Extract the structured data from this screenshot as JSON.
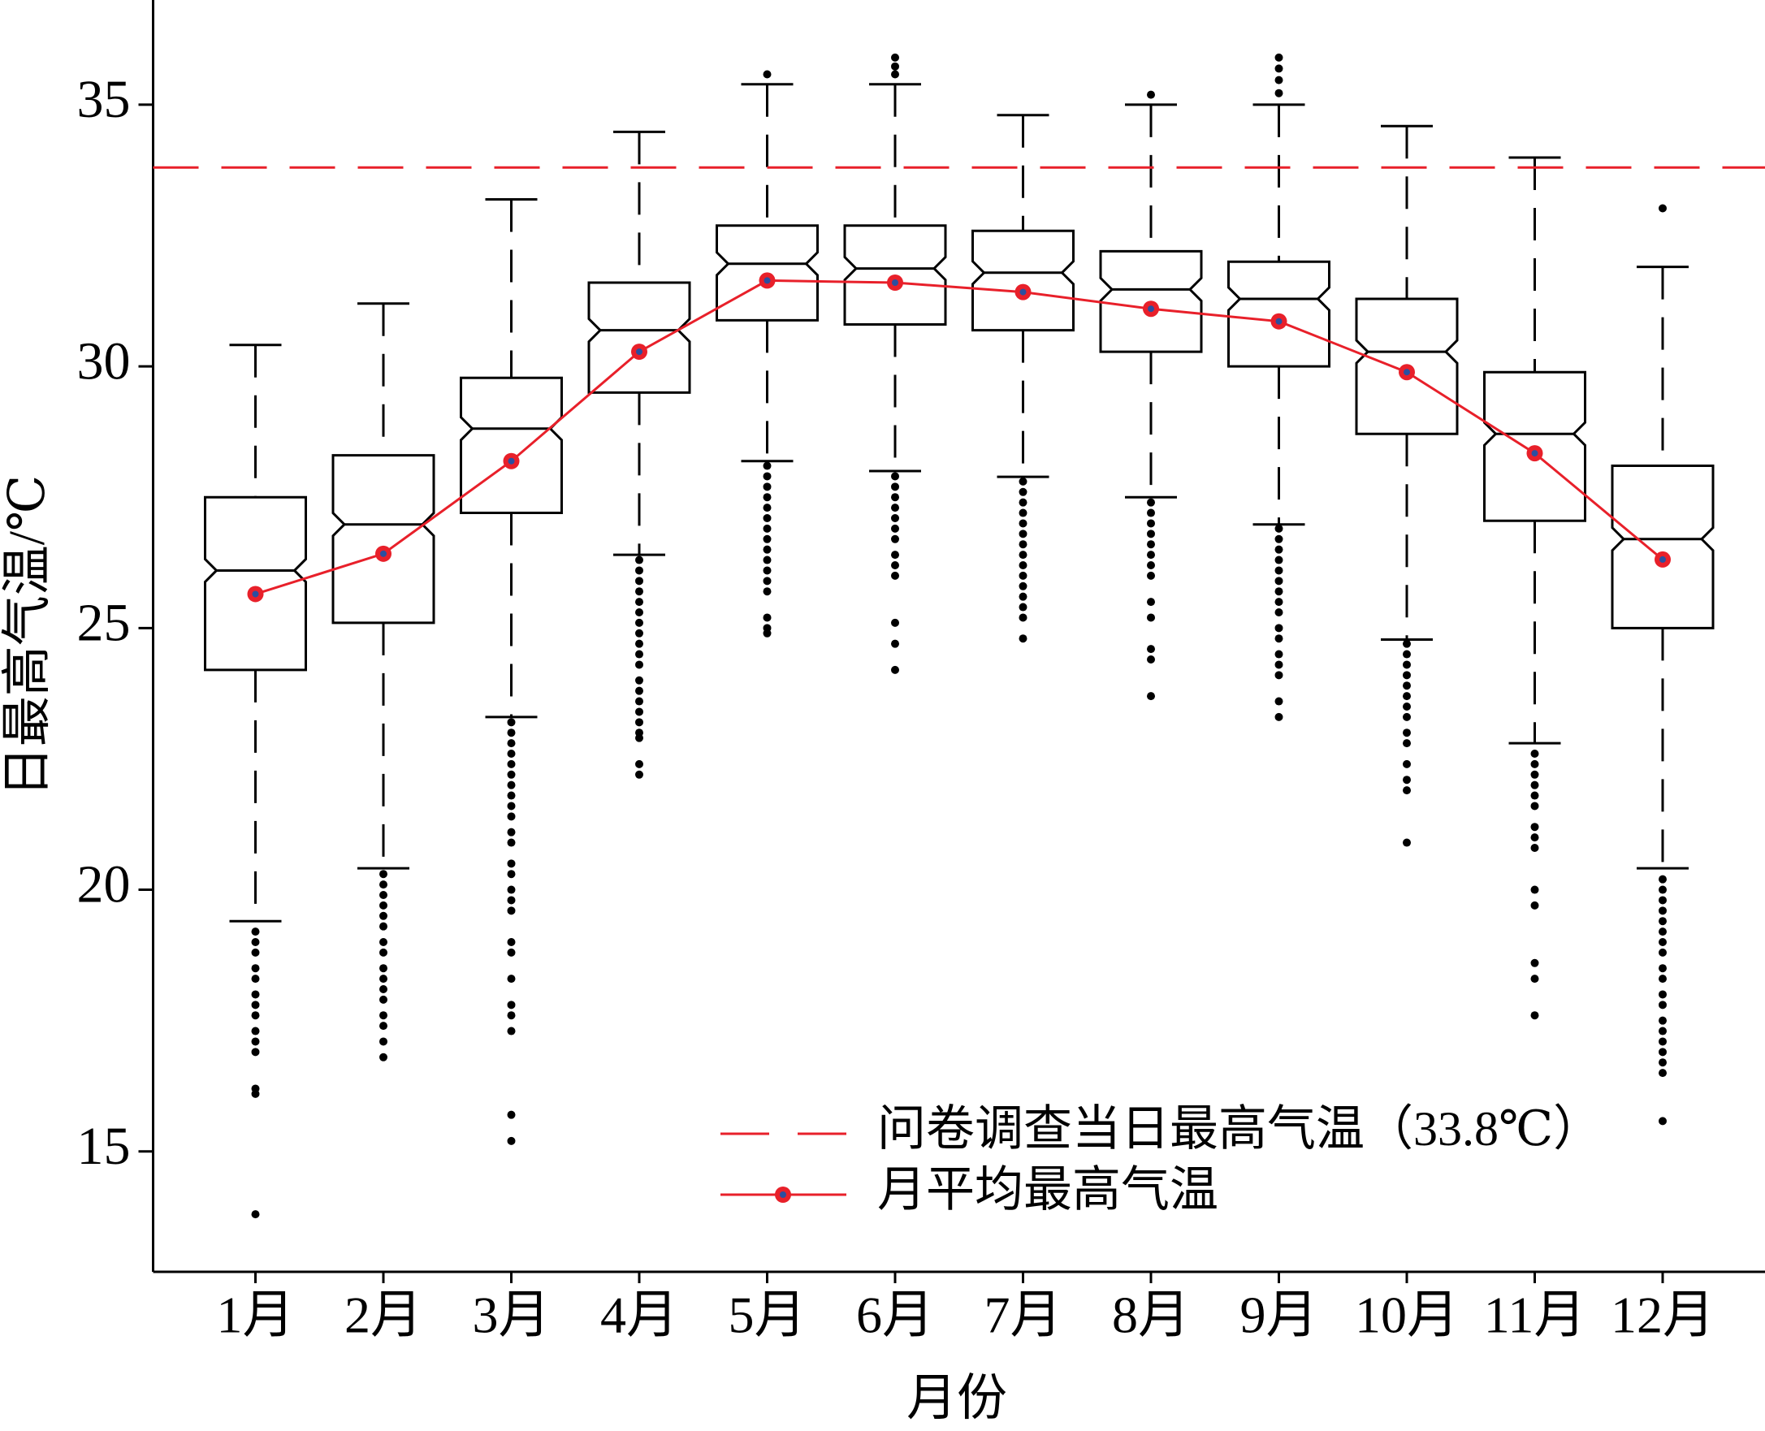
{
  "chart_data": {
    "type": "box",
    "xlabel": "月份",
    "ylabel": "日最高气温/℃",
    "categories": [
      "1月",
      "2月",
      "3月",
      "4月",
      "5月",
      "6月",
      "7月",
      "8月",
      "9月",
      "10月",
      "11月",
      "12月"
    ],
    "ylim": [
      12.7,
      37.0
    ],
    "yticks": [
      15,
      20,
      25,
      30,
      35
    ],
    "legend": "lower right",
    "box_color": "#000000",
    "boxes": {
      "whisker_high": [
        30.41,
        31.2,
        33.19,
        34.48,
        35.39,
        35.39,
        34.8,
        35.0,
        35.0,
        34.59,
        33.99,
        31.9
      ],
      "q3": [
        27.5,
        28.3,
        29.78,
        31.6,
        32.69,
        32.69,
        32.59,
        32.2,
        32.0,
        31.29,
        29.89,
        28.1
      ],
      "median": [
        26.1,
        26.98,
        28.81,
        30.69,
        31.96,
        31.87,
        31.79,
        31.47,
        31.29,
        30.28,
        28.71,
        26.7
      ],
      "q1": [
        24.2,
        25.1,
        27.2,
        29.5,
        30.88,
        30.8,
        30.69,
        30.28,
        30.0,
        28.71,
        27.05,
        25.0
      ],
      "whisker_low": [
        19.4,
        20.41,
        23.3,
        26.4,
        28.19,
        28.0,
        27.89,
        27.5,
        26.98,
        24.78,
        22.8,
        20.41
      ],
      "outliers": [
        [
          19.2,
          19.0,
          18.8,
          18.5,
          18.3,
          18.0,
          17.8,
          17.6,
          17.3,
          17.1,
          16.9,
          16.2,
          16.1,
          13.8
        ],
        [
          20.3,
          20.1,
          19.9,
          19.7,
          19.5,
          19.3,
          19.0,
          18.8,
          18.5,
          18.3,
          18.1,
          17.9,
          17.6,
          17.4,
          17.1,
          16.8
        ],
        [
          23.2,
          23.0,
          22.8,
          22.6,
          22.4,
          22.2,
          22.0,
          21.8,
          21.6,
          21.4,
          21.1,
          20.9,
          20.5,
          20.3,
          20.0,
          19.8,
          19.6,
          19.0,
          18.8,
          18.3,
          17.8,
          17.6,
          17.3,
          15.7,
          15.2
        ],
        [
          26.3,
          26.1,
          25.9,
          25.7,
          25.5,
          25.3,
          25.1,
          24.9,
          24.7,
          24.5,
          24.3,
          24.0,
          23.8,
          23.6,
          23.4,
          23.2,
          23.0,
          22.9,
          22.4,
          22.2
        ],
        [
          35.58,
          28.1,
          27.9,
          27.7,
          27.5,
          27.3,
          27.1,
          26.9,
          26.7,
          26.5,
          26.3,
          26.1,
          25.9,
          25.7,
          25.2,
          25.0,
          24.9
        ],
        [
          35.9,
          35.73,
          35.58,
          27.9,
          27.7,
          27.5,
          27.3,
          27.1,
          26.9,
          26.7,
          26.4,
          26.2,
          26.0,
          25.1,
          24.7,
          24.2
        ],
        [
          27.8,
          27.6,
          27.4,
          27.2,
          27.0,
          26.8,
          26.6,
          26.4,
          26.2,
          26.0,
          25.8,
          25.6,
          25.4,
          25.2,
          24.8
        ],
        [
          35.19,
          27.4,
          27.2,
          27.0,
          26.8,
          26.6,
          26.4,
          26.2,
          26.0,
          25.5,
          25.2,
          24.6,
          24.4,
          23.7
        ],
        [
          35.9,
          35.69,
          35.47,
          35.22,
          26.9,
          26.7,
          26.5,
          26.3,
          26.1,
          25.9,
          25.7,
          25.5,
          25.3,
          25.0,
          24.8,
          24.5,
          24.3,
          24.1,
          23.6,
          23.3
        ],
        [
          24.7,
          24.5,
          24.3,
          24.1,
          23.9,
          23.7,
          23.5,
          23.3,
          23.0,
          22.8,
          22.4,
          22.1,
          21.9,
          20.9
        ],
        [
          22.6,
          22.4,
          22.2,
          22.0,
          21.8,
          21.6,
          21.2,
          21.0,
          20.8,
          20.0,
          19.7,
          18.6,
          18.3,
          17.6
        ],
        [
          33.02,
          20.2,
          20.0,
          19.8,
          19.6,
          19.4,
          19.2,
          19.0,
          18.8,
          18.5,
          18.3,
          18.0,
          17.8,
          17.5,
          17.3,
          17.1,
          16.9,
          16.7,
          16.5,
          15.58
        ]
      ]
    },
    "mean_series": {
      "name": "月平均最高气温",
      "color": "#e8202a",
      "marker_color": "#2b4fa0",
      "values": [
        25.65,
        26.42,
        28.19,
        30.28,
        31.64,
        31.6,
        31.42,
        31.1,
        30.86,
        29.89,
        28.34,
        26.31
      ]
    },
    "reference_line": {
      "name": "问卷调查当日最高气温（33.8℃）",
      "value": 33.8,
      "color": "#e8202a"
    }
  }
}
